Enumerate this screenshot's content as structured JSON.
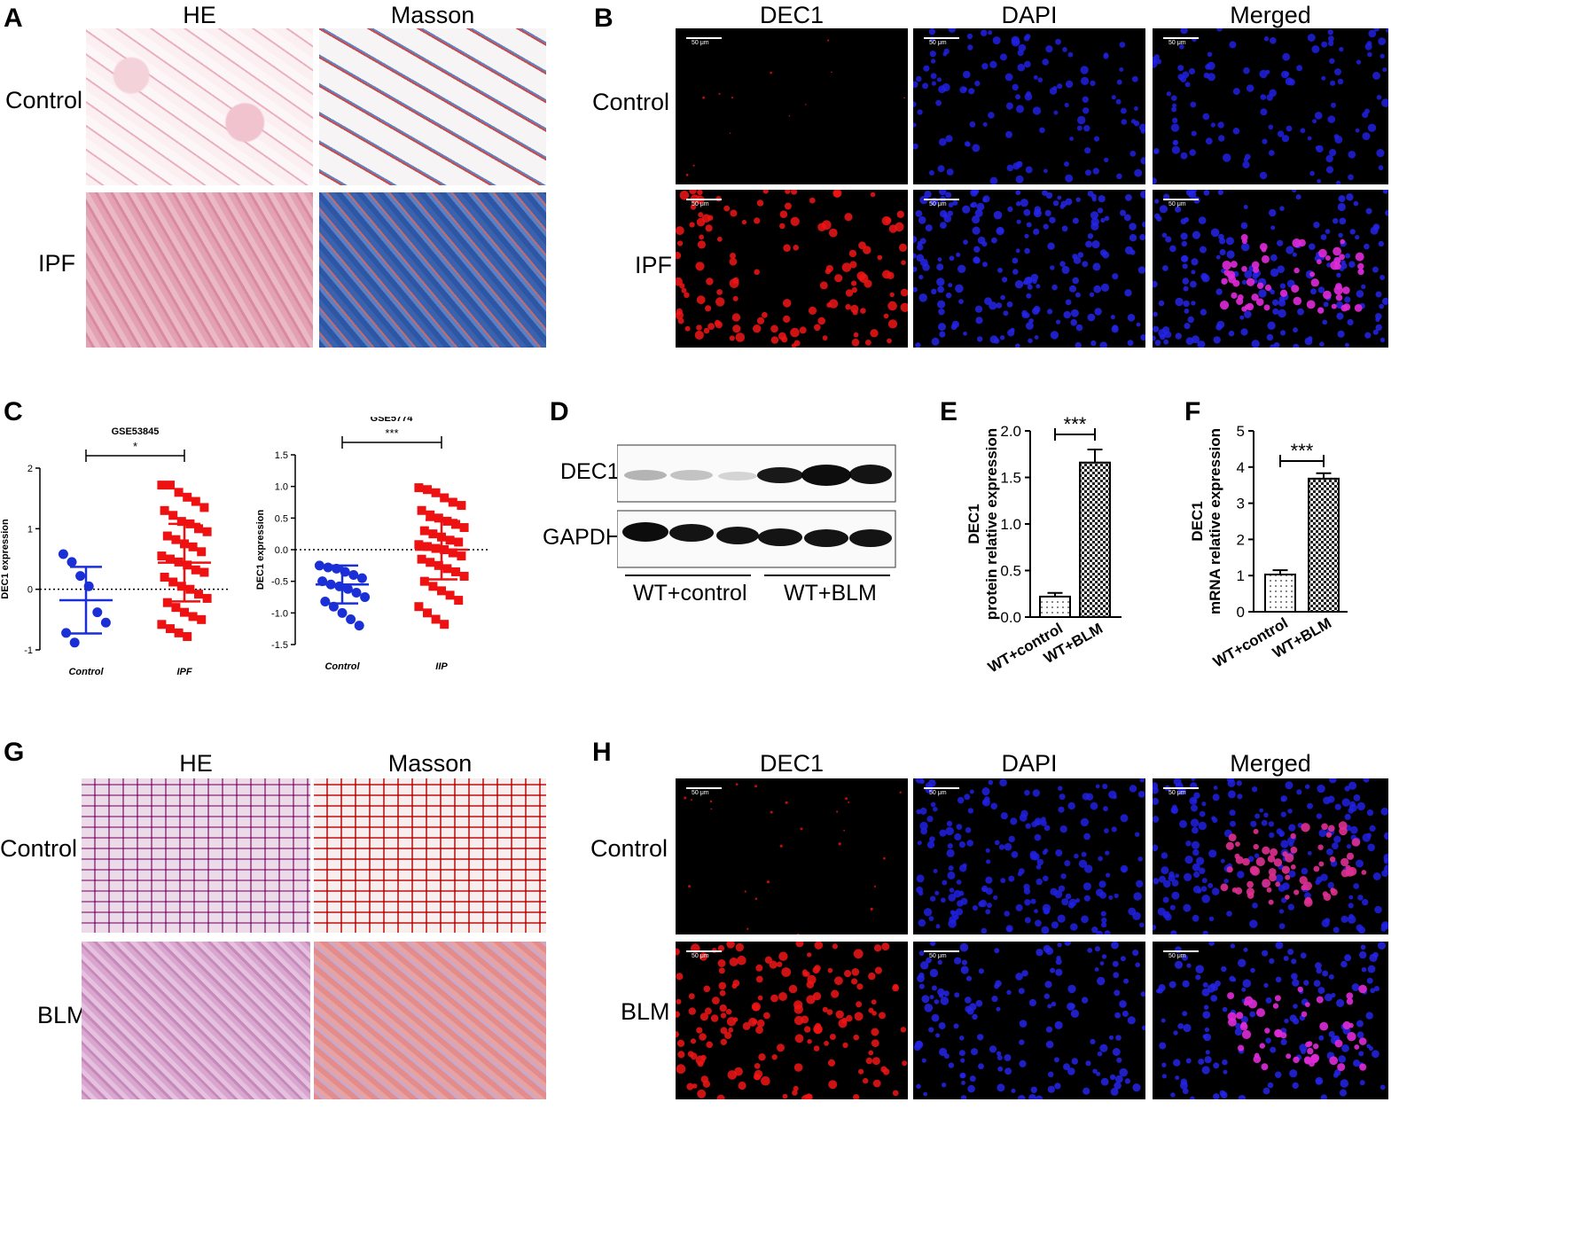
{
  "panels": {
    "A": {
      "letter": "A",
      "cols": [
        "HE",
        "Masson"
      ],
      "rows": [
        "Control",
        "IPF"
      ]
    },
    "B": {
      "letter": "B",
      "cols": [
        "DEC1",
        "DAPI",
        "Merged"
      ],
      "rows": [
        "Control",
        "IPF"
      ],
      "scale": "50 μm"
    },
    "C": {
      "letter": "C"
    },
    "D": {
      "letter": "D",
      "bands": [
        "DEC1",
        "GAPDH"
      ],
      "groups": [
        "WT+control",
        "WT+BLM"
      ]
    },
    "E": {
      "letter": "E"
    },
    "F": {
      "letter": "F"
    },
    "G": {
      "letter": "G",
      "cols": [
        "HE",
        "Masson"
      ],
      "rows": [
        "Control",
        "BLM"
      ]
    },
    "H": {
      "letter": "H",
      "cols": [
        "DEC1",
        "DAPI",
        "Merged"
      ],
      "rows": [
        "Control",
        "BLM"
      ],
      "scale": "50 μm"
    }
  },
  "chart_data": [
    {
      "panel": "C-left",
      "type": "scatter",
      "title": "GSE53845",
      "ylabel": "DEC1 expression",
      "categories": [
        "Control",
        "IPF"
      ],
      "ylim": [
        -1,
        2
      ],
      "yticks": [
        -1,
        0,
        1,
        2
      ],
      "significance": "*",
      "reference_line": 0,
      "series": [
        {
          "name": "Control",
          "color": "#1a2fd6",
          "mean": -0.18,
          "sd": 0.55,
          "values": [
            0.58,
            0.45,
            0.22,
            0.05,
            -0.38,
            -0.55,
            -0.72,
            -0.88
          ]
        },
        {
          "name": "IPF",
          "color": "#ee1111",
          "mean": 0.44,
          "sd": 0.64,
          "values": [
            1.72,
            1.72,
            1.6,
            1.52,
            1.45,
            1.35,
            1.3,
            1.22,
            1.12,
            1.08,
            1.0,
            0.95,
            0.88,
            0.82,
            0.75,
            0.7,
            0.62,
            0.55,
            0.5,
            0.45,
            0.4,
            0.32,
            0.28,
            0.2,
            0.12,
            0.05,
            0.0,
            -0.08,
            -0.15,
            -0.22,
            -0.3,
            -0.38,
            -0.45,
            -0.5,
            -0.58,
            -0.65,
            -0.72,
            -0.78
          ]
        }
      ]
    },
    {
      "panel": "C-right",
      "type": "scatter",
      "title": "GSE5774",
      "ylabel": "DEC1 expression",
      "categories": [
        "Control",
        "IIP"
      ],
      "ylim": [
        -1.5,
        1.5
      ],
      "yticks": [
        -1.5,
        -1.0,
        -0.5,
        0.0,
        0.5,
        1.0,
        1.5
      ],
      "significance": "***",
      "reference_line": 0,
      "series": [
        {
          "name": "Control",
          "color": "#1a2fd6",
          "mean": -0.55,
          "sd": 0.3,
          "values": [
            -0.25,
            -0.28,
            -0.3,
            -0.35,
            -0.4,
            -0.45,
            -0.5,
            -0.55,
            -0.58,
            -0.62,
            -0.68,
            -0.75,
            -0.82,
            -0.9,
            -1.0,
            -1.1,
            -1.2
          ]
        },
        {
          "name": "IIP",
          "color": "#ee1111",
          "mean": 0.0,
          "sd": 0.47,
          "values": [
            0.98,
            0.95,
            0.9,
            0.82,
            0.75,
            0.7,
            0.62,
            0.55,
            0.5,
            0.45,
            0.4,
            0.35,
            0.3,
            0.25,
            0.2,
            0.15,
            0.12,
            0.08,
            0.05,
            0.02,
            0.0,
            -0.05,
            -0.1,
            -0.15,
            -0.2,
            -0.25,
            -0.3,
            -0.35,
            -0.42,
            -0.5,
            -0.58,
            -0.65,
            -0.72,
            -0.8,
            -0.9,
            -1.0,
            -1.1,
            -1.18
          ]
        }
      ]
    },
    {
      "panel": "E",
      "type": "bar",
      "categories": [
        "WT+control",
        "WT+BLM"
      ],
      "values": [
        0.22,
        1.66
      ],
      "errors": [
        0.04,
        0.14
      ],
      "ylabel": "DEC1\nprotein relative expression",
      "ylabel_lines": [
        "DEC1",
        "protein relative expression"
      ],
      "ylim": [
        0,
        2.0
      ],
      "yticks": [
        "0.0",
        "0.5",
        "1.0",
        "1.5",
        "2.0"
      ],
      "significance": "***"
    },
    {
      "panel": "F",
      "type": "bar",
      "categories": [
        "WT+control",
        "WT+BLM"
      ],
      "values": [
        1.03,
        3.68
      ],
      "errors": [
        0.12,
        0.15
      ],
      "ylabel_lines": [
        "DEC1",
        "mRNA relative expression"
      ],
      "ylim": [
        0,
        5
      ],
      "yticks": [
        "0",
        "1",
        "2",
        "3",
        "4",
        "5"
      ],
      "significance": "***"
    }
  ]
}
